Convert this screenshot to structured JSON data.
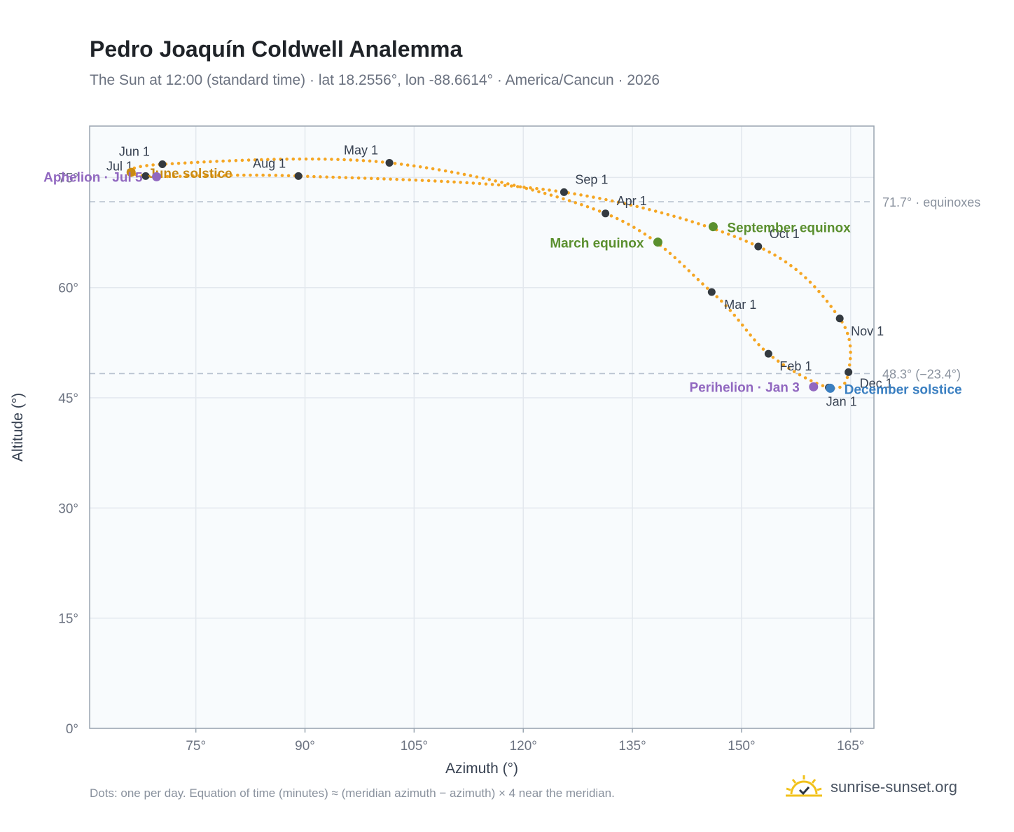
{
  "header": {
    "title": "Pedro Joaquín Coldwell Analemma",
    "subtitle": "The Sun at 12:00 (standard time) · lat 18.2556°, lon -88.6614° · America/Cancun · 2026"
  },
  "footer": {
    "note": "Dots: one per day. Equation of time (minutes) ≈ (meridian azimuth − azimuth) × 4 near the meridian.",
    "brand": "sunrise-sunset.org"
  },
  "colors": {
    "path": "#f5a623",
    "month_dot": "#343a40",
    "equinox": "#5a8f2e",
    "december_solstice": "#3a7fc1",
    "june_solstice": "#c98a12",
    "apsis": "#9168c0",
    "reference_line": "#b8c2cf",
    "plot_bg": "#f8fbfd",
    "grid": "#e3e8ee"
  },
  "chart_data": {
    "type": "scatter",
    "xlabel": "Azimuth (°)",
    "ylabel": "Altitude (°)",
    "xlim": [
      60.4,
      168.2
    ],
    "ylim": [
      0,
      82
    ],
    "x_ticks": [
      {
        "value": 75,
        "label": "75°"
      },
      {
        "value": 90,
        "label": "90°"
      },
      {
        "value": 105,
        "label": "105°"
      },
      {
        "value": 120,
        "label": "120°"
      },
      {
        "value": 135,
        "label": "135°"
      },
      {
        "value": 150,
        "label": "150°"
      },
      {
        "value": 165,
        "label": "165°"
      }
    ],
    "y_ticks": [
      {
        "value": 0,
        "label": "0°"
      },
      {
        "value": 15,
        "label": "15°"
      },
      {
        "value": 30,
        "label": "30°"
      },
      {
        "value": 45,
        "label": "45°"
      },
      {
        "value": 60,
        "label": "60°"
      },
      {
        "value": 75,
        "label": "75°"
      }
    ],
    "grid": true,
    "reference_lines": [
      {
        "y": 71.7,
        "label": "71.7° · equinoxes"
      },
      {
        "y": 48.3,
        "label": "48.3° (−23.4°)"
      }
    ],
    "month_points": [
      {
        "label": "Jan 1",
        "x": 162.0,
        "y": 46.4
      },
      {
        "label": "Feb 1",
        "x": 153.7,
        "y": 51.0
      },
      {
        "label": "Mar 1",
        "x": 145.9,
        "y": 59.4
      },
      {
        "label": "Apr 1",
        "x": 131.3,
        "y": 70.1
      },
      {
        "label": "May 1",
        "x": 101.6,
        "y": 77.0
      },
      {
        "label": "Jun 1",
        "x": 70.4,
        "y": 76.8
      },
      {
        "label": "Jul 1",
        "x": 68.1,
        "y": 75.2
      },
      {
        "label": "Aug 1",
        "x": 89.1,
        "y": 75.2
      },
      {
        "label": "Sep 1",
        "x": 125.6,
        "y": 73.0
      },
      {
        "label": "Oct 1",
        "x": 152.3,
        "y": 65.6
      },
      {
        "label": "Nov 1",
        "x": 163.5,
        "y": 55.8
      },
      {
        "label": "Dec 1",
        "x": 164.7,
        "y": 48.5
      }
    ],
    "special_points": [
      {
        "label": "March equinox",
        "x": 138.5,
        "y": 66.2,
        "kind": "equinox"
      },
      {
        "label": "September equinox",
        "x": 146.1,
        "y": 68.3,
        "kind": "equinox"
      },
      {
        "label": "December solstice",
        "x": 162.2,
        "y": 46.3,
        "kind": "december_solstice"
      },
      {
        "label": "June solstice",
        "x": 66.1,
        "y": 75.7,
        "kind": "june_solstice"
      },
      {
        "label": "Perihelion · Jan 3",
        "x": 159.9,
        "y": 46.5,
        "kind": "apsis"
      },
      {
        "label": "Aphelion · Jul 5",
        "x": 69.6,
        "y": 75.1,
        "kind": "apsis"
      }
    ]
  }
}
